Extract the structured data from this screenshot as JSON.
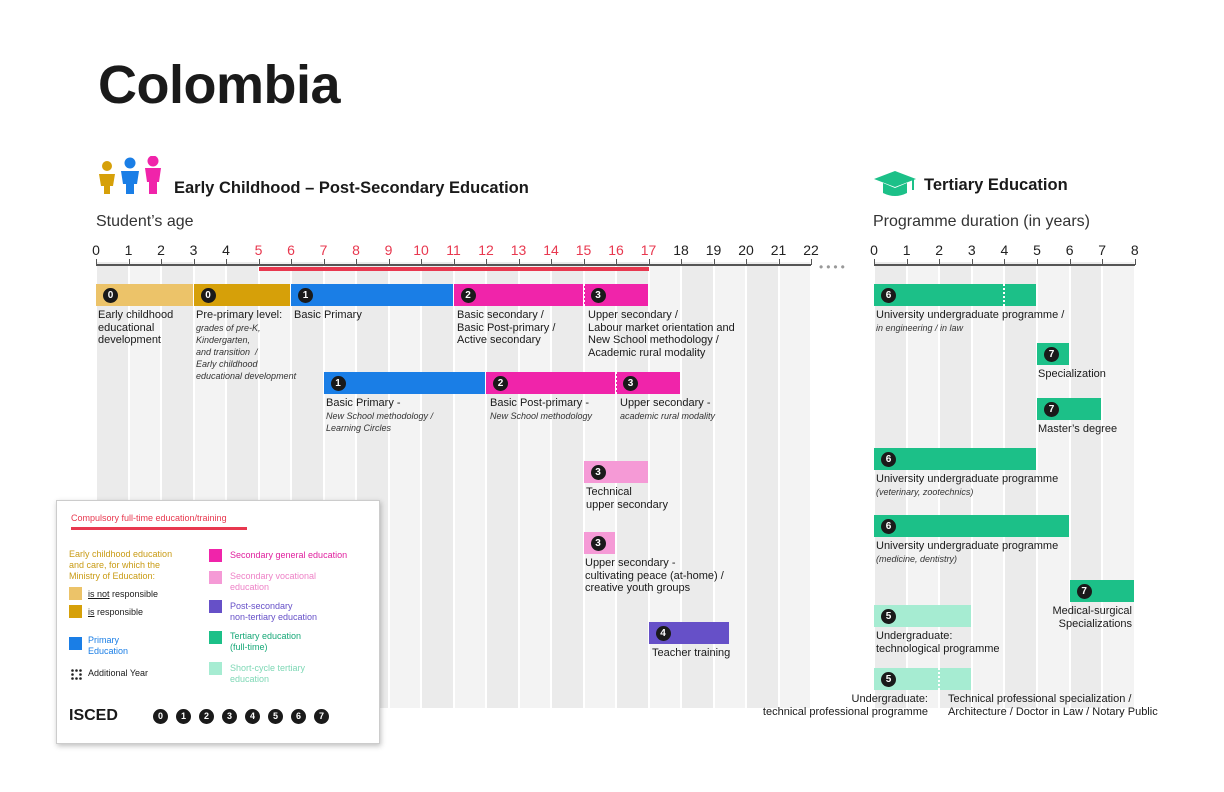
{
  "page_title": "Colombia",
  "left_section": {
    "title": "Early Childhood – Post-Secondary Education",
    "axis_title": "Student’s age"
  },
  "right_section": {
    "title": "Tertiary Education",
    "axis_title": "Programme duration (in years)"
  },
  "age_ticks": [
    "0",
    "1",
    "2",
    "3",
    "4",
    "5",
    "6",
    "7",
    "8",
    "9",
    "10",
    "11",
    "12",
    "13",
    "14",
    "15",
    "16",
    "17",
    "18",
    "19",
    "20",
    "21",
    "22"
  ],
  "year_ticks": [
    "0",
    "1",
    "2",
    "3",
    "4",
    "5",
    "6",
    "7",
    "8"
  ],
  "compulsory_range": [
    5,
    17
  ],
  "colors": {
    "early_not": "#ecc369",
    "early_is": "#d6a009",
    "primary": "#1a7ee6",
    "secondary_general": "#f024aa",
    "secondary_vocational": "#f59ad6",
    "post_secondary": "#6650c8",
    "tertiary": "#1cc088",
    "short_cycle": "#a6ecd2",
    "compulsory": "#e8384f"
  },
  "programs": [
    {
      "start": 0,
      "end": 3,
      "color": "early_not",
      "isced": "0",
      "label": "Early childhood\neducational\ndevelopment",
      "sub": ""
    },
    {
      "start": 3,
      "end": 6,
      "color": "early_is",
      "isced": "0",
      "label": "Pre-primary level:",
      "sub": "grades of pre-K,\nKindergarten,\nand transition  /\nEarly childhood\neducational development"
    },
    {
      "start": 6,
      "end": 11,
      "color": "primary",
      "isced": "1",
      "label": "Basic Primary",
      "sub": ""
    },
    {
      "start": 11,
      "end": 15,
      "color": "secondary_general",
      "isced": "2",
      "label": "Basic secondary /\nBasic Post-primary /\nActive secondary",
      "sub": ""
    },
    {
      "start": 15,
      "end": 17,
      "color": "secondary_general",
      "isced": "3",
      "label": "Upper secondary /\nLabour market orientation and\nNew School methodology /\nAcademic rural modality",
      "sub": ""
    },
    {
      "start": 7,
      "end": 12,
      "color": "primary",
      "isced": "1",
      "label": "Basic Primary -",
      "sub": "New School methodology /\nLearning Circles"
    },
    {
      "start": 12,
      "end": 16,
      "color": "secondary_general",
      "isced": "2",
      "label": "Basic Post-primary -",
      "sub": "New School methodology"
    },
    {
      "start": 16,
      "end": 18,
      "color": "secondary_general",
      "isced": "3",
      "label": "Upper secondary -",
      "sub": "academic rural modality"
    },
    {
      "start": 15,
      "end": 17,
      "color": "secondary_vocational",
      "isced": "3",
      "label": "Technical\nupper secondary",
      "sub": ""
    },
    {
      "start": 15,
      "end": 16,
      "color": "secondary_vocational",
      "isced": "3",
      "label": "Upper secondary -\ncultivating peace (at-home) /\ncreative youth groups",
      "sub": ""
    },
    {
      "start": 17,
      "end": 19.5,
      "color": "post_secondary",
      "isced": "4",
      "label": "Teacher training",
      "sub": ""
    }
  ],
  "tertiary_programs": [
    {
      "start": 0,
      "end": 5,
      "color": "tertiary",
      "isced": "6",
      "label": "University undergraduate programme /",
      "sub": "in engineering / in law"
    },
    {
      "start": 5,
      "end": 6,
      "color": "tertiary",
      "isced": "7",
      "label": "Specialization",
      "sub": ""
    },
    {
      "start": 5,
      "end": 7,
      "color": "tertiary",
      "isced": "7",
      "label": "Master’s degree",
      "sub": ""
    },
    {
      "start": 0,
      "end": 5,
      "color": "tertiary",
      "isced": "6",
      "label": "University undergraduate programme",
      "sub": "(veterinary, zootechnics)"
    },
    {
      "start": 0,
      "end": 6,
      "color": "tertiary",
      "isced": "6",
      "label": "University undergraduate programme",
      "sub": "(medicine, dentistry)"
    },
    {
      "start": 6,
      "end": 8,
      "color": "tertiary",
      "isced": "7",
      "label": "Medical-surgical\nSpecializations",
      "sub": ""
    },
    {
      "start": 0,
      "end": 3,
      "color": "short_cycle",
      "isced": "5",
      "label": "Undergraduate:\ntechnological programme",
      "sub": ""
    },
    {
      "start": 0,
      "end": 3,
      "color": "short_cycle",
      "isced": "5",
      "label": "Undergraduate:\ntechnical professional programme",
      "sub": ""
    },
    {
      "start": 2,
      "end": 3,
      "color": "short_cycle",
      "isced": "",
      "label": "Technical professional specialization /\nArchitecture / Doctor in Law / Notary Public",
      "sub": ""
    }
  ],
  "legend": {
    "compulsory": "Compulsory full-time education/training",
    "early_heading": "Early childhood education\nand care, for which the\nMinistry of Education:",
    "is_not": "is not",
    "is": "is",
    "responsible": "responsible",
    "primary": "Primary\nEducation",
    "additional_year": "Additional Year",
    "secondary_general": "Secondary general education",
    "secondary_vocational": "Secondary vocational\neducation",
    "post_secondary": "Post-secondary\nnon-tertiary education",
    "tertiary": "Tertiary education\n(full-time)",
    "short_cycle": "Short-cycle tertiary\neducation",
    "isced_label": "ISCED",
    "isced_levels": [
      "0",
      "1",
      "2",
      "3",
      "4",
      "5",
      "6",
      "7"
    ]
  }
}
